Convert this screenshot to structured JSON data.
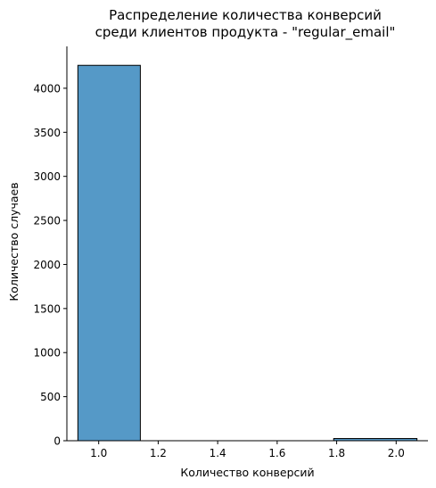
{
  "chart_data": {
    "type": "bar",
    "title": "Распределение количества конверсий",
    "subtitle": "среди клиентов продукта - \"regular_email\"",
    "xlabel": "Количество конверсий",
    "ylabel": "Количество случаев",
    "xlim": [
      0.893,
      2.107
    ],
    "ylim": [
      0,
      4475
    ],
    "x_ticks": [
      "1.0",
      "1.2",
      "1.4",
      "1.6",
      "1.8",
      "2.0"
    ],
    "x_tick_values": [
      1.0,
      1.2,
      1.4,
      1.6,
      1.8,
      2.0
    ],
    "y_ticks": [
      "0",
      "500",
      "1000",
      "1500",
      "2000",
      "2500",
      "3000",
      "3500",
      "4000"
    ],
    "y_tick_values": [
      0,
      500,
      1000,
      1500,
      2000,
      2500,
      3000,
      3500,
      4000
    ],
    "bins": [
      {
        "start": 0.93,
        "end": 1.14,
        "count": 4260
      },
      {
        "start": 1.14,
        "end": 1.36,
        "count": 0
      },
      {
        "start": 1.36,
        "end": 1.57,
        "count": 0
      },
      {
        "start": 1.57,
        "end": 1.79,
        "count": 0
      },
      {
        "start": 1.79,
        "end": 2.07,
        "count": 25
      }
    ],
    "bar_color": "#5599c7",
    "edge_color": "#000000",
    "grid": false,
    "legend": "none"
  }
}
